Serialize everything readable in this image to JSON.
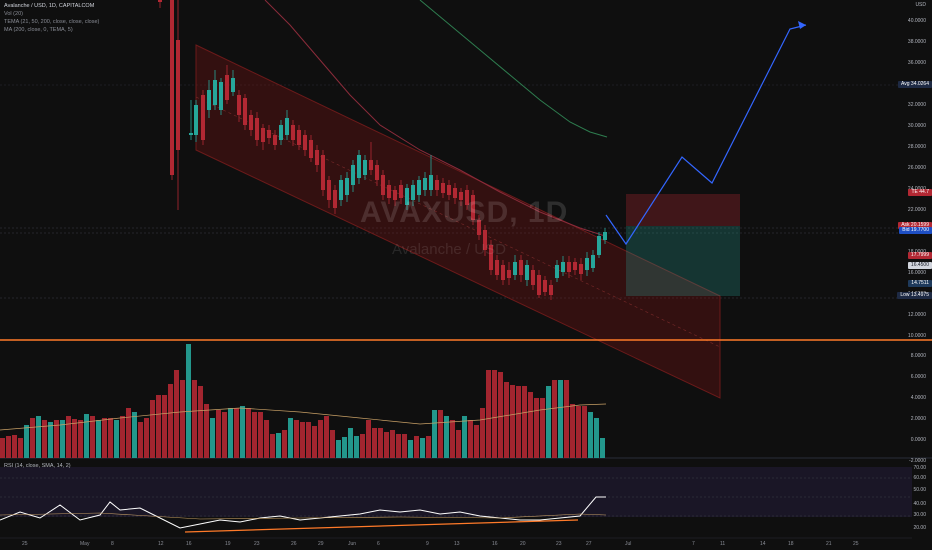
{
  "legend": {
    "symbol": "Avalanche / USD, 1D, CAPITALCOM",
    "vol": "Vol (20)",
    "tema": "TEMA (21, 50, 200, close, close, close)",
    "ma": "MA (200, close, 0, TEMA, 5)"
  },
  "watermark": {
    "ticker": "AVAXUSD, 1D",
    "name": "Avalanche / USD"
  },
  "rsi_legend": "RSI (14, close, SMA, 14, 2)",
  "price_axis": {
    "currency": "USD",
    "ticks": [
      "40.0000",
      "38.0000",
      "36.0000",
      "34.0000",
      "32.0000",
      "30.0000",
      "28.0000",
      "26.0000",
      "24.0000",
      "22.0000",
      "20.0000",
      "18.0000",
      "16.0000",
      "14.0000",
      "12.0000",
      "10.0000",
      "8.0000",
      "6.0000",
      "4.0000",
      "2.0000",
      "0.0000",
      "-2.0000"
    ],
    "tags": [
      {
        "label": "Avg",
        "value": "34.0264",
        "color": "#1e2a44"
      },
      {
        "label": "",
        "value": "TE 44.7",
        "color": "#b22833"
      },
      {
        "label": "Ask",
        "value": "20.1599",
        "color": "#b22833"
      },
      {
        "label": "Bid",
        "value": "19.7700",
        "color": "#1e4fc4"
      },
      {
        "label": "",
        "value": "17.7999",
        "color": "#b22833"
      },
      {
        "label": "",
        "value": "16.4500",
        "color": "#d1d4dc"
      },
      {
        "label": "",
        "value": "14.7511",
        "color": "#1e3a5c"
      },
      {
        "label": "Low",
        "value": "13.4975",
        "color": "#1e2a44"
      }
    ]
  },
  "rsi_axis": {
    "ticks": [
      "70.00",
      "60.00",
      "50.00",
      "40.00",
      "30.00",
      "20.00"
    ]
  },
  "time_axis": {
    "labels": [
      "25",
      "May",
      "8",
      "12",
      "16",
      "19",
      "23",
      "26",
      "29",
      "Jun",
      "6",
      "9",
      "13",
      "16",
      "20",
      "23",
      "27",
      "Jul",
      "7",
      "11",
      "14",
      "18",
      "21",
      "25"
    ]
  },
  "colors": {
    "up": "#26a69a",
    "down": "#b22833",
    "projection": "#3366ff",
    "channel": "#6b1a1a",
    "hline": "#ff7a29"
  }
}
